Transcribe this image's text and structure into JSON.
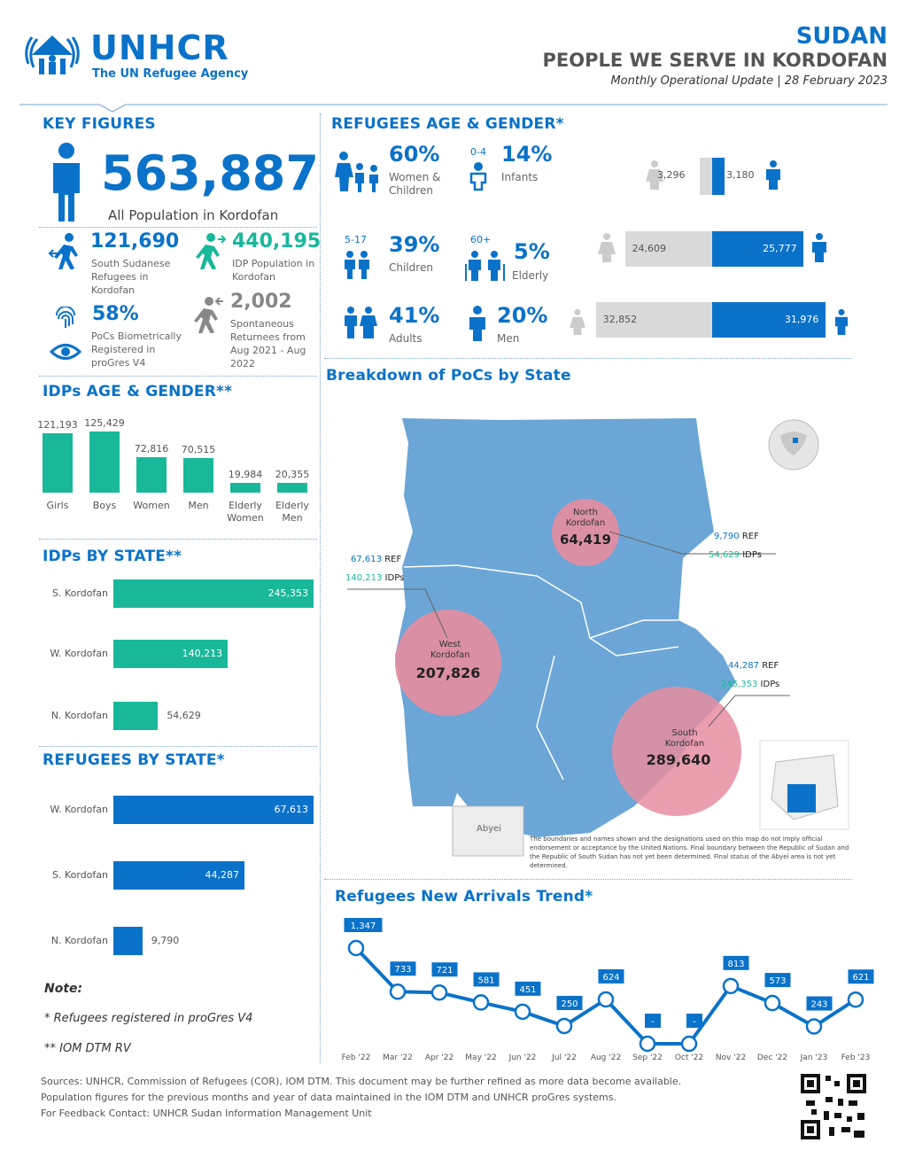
{
  "header": {
    "org": "UNHCR",
    "org_sub": "The UN Refugee Agency",
    "country": "SUDAN",
    "title": "PEOPLE WE SERVE IN KORDOFAN",
    "subtitle": "Monthly Operational Update | 28 February 2023"
  },
  "key_figures": {
    "heading": "KEY FIGURES",
    "total": "563,887",
    "total_label": "All Population in Kordofan",
    "ssd_refugees": "121,690",
    "ssd_refugees_label": "South Sudanese Refugees in Kordofan",
    "idps": "440,195",
    "idps_label": "IDP Population in Kordofan",
    "biometric": "58%",
    "biometric_label": "PoCs Biometrically Registered in proGres V4",
    "spontaneous": "2,002",
    "spontaneous_label": "Spontaneous Returnees from Aug 2021 - Aug 2022"
  },
  "refugees_age_gender": {
    "heading": "REFUGEES AGE & GENDER*",
    "women_children_pct": "60%",
    "women_children_label": "Women & Children",
    "infants_range": "0-4",
    "infants_pct": "14%",
    "infants_label": "Infants",
    "children_range": "5-17",
    "children_pct": "39%",
    "children_label": "Children",
    "elderly_range": "60+",
    "elderly_pct": "5%",
    "elderly_label": "Elderly",
    "adults_pct": "41%",
    "adults_label": "Adults",
    "men_pct": "20%",
    "men_label": "Men",
    "pyramid": [
      {
        "female": "3,296",
        "male": "3,180",
        "female_val": 3296,
        "male_val": 3180
      },
      {
        "female": "24,609",
        "male": "25,777",
        "female_val": 24609,
        "male_val": 25777
      },
      {
        "female": "32,852",
        "male": "31,976",
        "female_val": 32852,
        "male_val": 31976
      }
    ]
  },
  "idps_age_gender": {
    "heading": "IDPs AGE & GENDER**",
    "chart_data": {
      "type": "bar",
      "categories": [
        "Girls",
        "Boys",
        "Women",
        "Men",
        "Elderly Women",
        "Elderly Men"
      ],
      "values": [
        121193,
        125429,
        72816,
        70515,
        19984,
        20355
      ],
      "labels": [
        "121,193",
        "125,429",
        "72,816",
        "70,515",
        "19,984",
        "20,355"
      ]
    }
  },
  "idps_by_state": {
    "heading": "IDPs BY STATE**",
    "chart_data": {
      "type": "bar",
      "categories": [
        "S. Kordofan",
        "W. Kordofan",
        "N. Kordofan"
      ],
      "values": [
        245353,
        140213,
        54629
      ],
      "labels": [
        "245,353",
        "140,213",
        "54,629"
      ]
    }
  },
  "refugees_by_state": {
    "heading": "REFUGEES BY STATE*",
    "chart_data": {
      "type": "bar",
      "categories": [
        "W. Kordofan",
        "S. Kordofan",
        "N. Kordofan"
      ],
      "values": [
        67613,
        44287,
        9790
      ],
      "labels": [
        "67,613",
        "44,287",
        "9,790"
      ]
    }
  },
  "notes": {
    "title": "Note:",
    "n1": "* Refugees registered in proGres V4",
    "n2": "** IOM DTM RV"
  },
  "map": {
    "heading": "Breakdown of PoCs by State",
    "north": {
      "name": "North Kordofan",
      "total": "64,419",
      "ref": "9,790",
      "idp": "54,629"
    },
    "west": {
      "name": "West Kordofan",
      "total": "207,826",
      "ref": "67,613",
      "idp": "140,213"
    },
    "south": {
      "name": "South Kordofan",
      "total": "289,640",
      "ref": "44,287",
      "idp": "245,353"
    },
    "ref_label": "REF",
    "idp_label": "IDPs",
    "abyei": "Abyei",
    "disclaimer": "The boundaries and names shown and the designations used on this map do not imply official endorsement or acceptance by the United Nations. Final boundary between the Republic of Sudan and the Republic of South Sudan has not yet been determined. Final status of the Abyei area is not yet determined."
  },
  "trend": {
    "heading": "Refugees New Arrivals Trend*",
    "chart_data": {
      "type": "line",
      "categories": [
        "Feb '22",
        "Mar '22",
        "Apr '22",
        "May '22",
        "Jun '22",
        "Jul '22",
        "Aug '22",
        "Sep '22",
        "Oct '22",
        "Nov '22",
        "Dec '22",
        "Jan '23",
        "Feb '23"
      ],
      "values": [
        1347,
        733,
        721,
        581,
        451,
        250,
        624,
        0,
        0,
        813,
        573,
        243,
        621
      ],
      "labels": [
        "1,347",
        "733",
        "721",
        "581",
        "451",
        "250",
        "624",
        "-",
        "-",
        "813",
        "573",
        "243",
        "621"
      ]
    }
  },
  "footer": {
    "sources": "Sources: UNHCR, Commission of Refugees (COR), IOM DTM. This document may be further refined as more data become available.",
    "line2": "Population figures for the previous months and year of data maintained in the IOM DTM and UNHCR proGres systems.",
    "contact": "For Feedback Contact: UNHCR Sudan Information Management Unit"
  },
  "colors": {
    "primary": "#0a72c9",
    "green": "#19b89a",
    "map": "#6ba6d6",
    "circle": "#e88da0",
    "grey": "#d9d9d9"
  }
}
